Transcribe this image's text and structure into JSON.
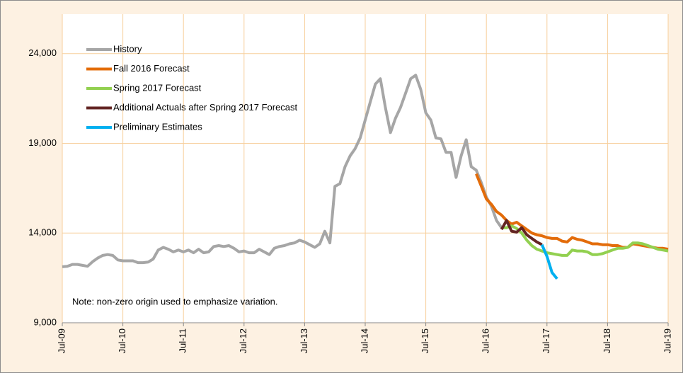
{
  "chart_data": {
    "type": "line",
    "categories": [
      "Jul-09",
      null,
      null,
      null,
      null,
      null,
      null,
      null,
      null,
      null,
      null,
      null,
      "Jul-10",
      null,
      null,
      null,
      null,
      null,
      null,
      null,
      null,
      null,
      null,
      null,
      "Jul-11",
      null,
      null,
      null,
      null,
      null,
      null,
      null,
      null,
      null,
      null,
      null,
      "Jul-12",
      null,
      null,
      null,
      null,
      null,
      null,
      null,
      null,
      null,
      null,
      null,
      "Jul-13",
      null,
      null,
      null,
      null,
      null,
      null,
      null,
      null,
      null,
      null,
      null,
      "Jul-14",
      null,
      null,
      null,
      null,
      null,
      null,
      null,
      null,
      null,
      null,
      null,
      "Jul-15",
      null,
      null,
      null,
      null,
      null,
      null,
      null,
      null,
      null,
      null,
      null,
      "Jul-16",
      null,
      null,
      null,
      null,
      null,
      null,
      null,
      null,
      null,
      null,
      null,
      "Jul-17",
      null,
      null,
      null,
      null,
      null,
      null,
      null,
      null,
      null,
      null,
      null,
      "Jul-18",
      null,
      null,
      null,
      null,
      null,
      null,
      null,
      null,
      null,
      null,
      null,
      "Jul-19"
    ],
    "series": [
      {
        "name": "History",
        "color": "#a6a6a6",
        "values": [
          12120,
          12150,
          12250,
          12250,
          12200,
          12150,
          12400,
          12600,
          12750,
          12800,
          12750,
          12500,
          12450,
          12450,
          12450,
          12350,
          12350,
          12380,
          12550,
          13050,
          13200,
          13100,
          12950,
          13050,
          12950,
          13050,
          12900,
          13100,
          12900,
          12950,
          13250,
          13300,
          13250,
          13300,
          13150,
          12950,
          13000,
          12900,
          12900,
          13100,
          12950,
          12800,
          13150,
          13250,
          13300,
          13400,
          13450,
          13600,
          13500,
          13350,
          13200,
          13400,
          14100,
          13450,
          16600,
          16750,
          17700,
          18300,
          18700,
          19300,
          20300,
          21300,
          22300,
          22600,
          21000,
          19600,
          20400,
          21000,
          21800,
          22600,
          22800,
          22000,
          20700,
          20300,
          19300,
          19250,
          18500,
          18500,
          17100,
          18300,
          19200,
          17700,
          17500,
          16800,
          16000,
          15500,
          14700,
          14300,
          null,
          null,
          null,
          null,
          null,
          null,
          null,
          null,
          null,
          null,
          null,
          null,
          null,
          null,
          null,
          null,
          null,
          null,
          null,
          null,
          null,
          null,
          null,
          null,
          null,
          null,
          null,
          null,
          null,
          null,
          null,
          null,
          null
        ]
      },
      {
        "name": "Fall 2016 Forecast",
        "color": "#e36c0a",
        "values": [
          null,
          null,
          null,
          null,
          null,
          null,
          null,
          null,
          null,
          null,
          null,
          null,
          null,
          null,
          null,
          null,
          null,
          null,
          null,
          null,
          null,
          null,
          null,
          null,
          null,
          null,
          null,
          null,
          null,
          null,
          null,
          null,
          null,
          null,
          null,
          null,
          null,
          null,
          null,
          null,
          null,
          null,
          null,
          null,
          null,
          null,
          null,
          null,
          null,
          null,
          null,
          null,
          null,
          null,
          null,
          null,
          null,
          null,
          null,
          null,
          null,
          null,
          null,
          null,
          null,
          null,
          null,
          null,
          null,
          null,
          null,
          null,
          null,
          null,
          null,
          null,
          null,
          null,
          null,
          null,
          null,
          null,
          17300,
          16600,
          15900,
          15600,
          15200,
          15000,
          14700,
          14500,
          14600,
          14400,
          14200,
          14000,
          13900,
          13850,
          13750,
          13700,
          13700,
          13550,
          13500,
          13750,
          13650,
          13600,
          13500,
          13400,
          13400,
          13350,
          13350,
          13300,
          13300,
          13200,
          13200,
          13400,
          13350,
          13300,
          13250,
          13200,
          13150,
          13150,
          13100
        ]
      },
      {
        "name": "Spring 2017 Forecast",
        "color": "#92d050",
        "values": [
          null,
          null,
          null,
          null,
          null,
          null,
          null,
          null,
          null,
          null,
          null,
          null,
          null,
          null,
          null,
          null,
          null,
          null,
          null,
          null,
          null,
          null,
          null,
          null,
          null,
          null,
          null,
          null,
          null,
          null,
          null,
          null,
          null,
          null,
          null,
          null,
          null,
          null,
          null,
          null,
          null,
          null,
          null,
          null,
          null,
          null,
          null,
          null,
          null,
          null,
          null,
          null,
          null,
          null,
          null,
          null,
          null,
          null,
          null,
          null,
          null,
          null,
          null,
          null,
          null,
          null,
          null,
          null,
          null,
          null,
          null,
          null,
          null,
          null,
          null,
          null,
          null,
          null,
          null,
          null,
          null,
          null,
          null,
          null,
          null,
          null,
          null,
          14300,
          14300,
          14400,
          14250,
          14000,
          13600,
          13300,
          13100,
          13000,
          12900,
          12850,
          12800,
          12750,
          12750,
          13050,
          13000,
          13000,
          12950,
          12800,
          12800,
          12850,
          12950,
          13050,
          13150,
          13150,
          13200,
          13450,
          13450,
          13400,
          13300,
          13200,
          13100,
          13050,
          13000
        ]
      },
      {
        "name": "Additional Actuals after Spring 2017 Forecast",
        "color": "#632523",
        "values": [
          null,
          null,
          null,
          null,
          null,
          null,
          null,
          null,
          null,
          null,
          null,
          null,
          null,
          null,
          null,
          null,
          null,
          null,
          null,
          null,
          null,
          null,
          null,
          null,
          null,
          null,
          null,
          null,
          null,
          null,
          null,
          null,
          null,
          null,
          null,
          null,
          null,
          null,
          null,
          null,
          null,
          null,
          null,
          null,
          null,
          null,
          null,
          null,
          null,
          null,
          null,
          null,
          null,
          null,
          null,
          null,
          null,
          null,
          null,
          null,
          null,
          null,
          null,
          null,
          null,
          null,
          null,
          null,
          null,
          null,
          null,
          null,
          null,
          null,
          null,
          null,
          null,
          null,
          null,
          null,
          null,
          null,
          null,
          null,
          null,
          null,
          null,
          14200,
          14700,
          14100,
          14050,
          14300,
          13900,
          13700,
          13500,
          13350,
          null,
          null,
          null,
          null,
          null,
          null,
          null,
          null,
          null,
          null,
          null,
          null,
          null,
          null,
          null,
          null,
          null,
          null,
          null,
          null,
          null,
          null,
          null,
          null,
          null
        ]
      },
      {
        "name": "Preliminary Estimates",
        "color": "#00b0f0",
        "values": [
          null,
          null,
          null,
          null,
          null,
          null,
          null,
          null,
          null,
          null,
          null,
          null,
          null,
          null,
          null,
          null,
          null,
          null,
          null,
          null,
          null,
          null,
          null,
          null,
          null,
          null,
          null,
          null,
          null,
          null,
          null,
          null,
          null,
          null,
          null,
          null,
          null,
          null,
          null,
          null,
          null,
          null,
          null,
          null,
          null,
          null,
          null,
          null,
          null,
          null,
          null,
          null,
          null,
          null,
          null,
          null,
          null,
          null,
          null,
          null,
          null,
          null,
          null,
          null,
          null,
          null,
          null,
          null,
          null,
          null,
          null,
          null,
          null,
          null,
          null,
          null,
          null,
          null,
          null,
          null,
          null,
          null,
          null,
          null,
          null,
          null,
          null,
          null,
          null,
          null,
          null,
          null,
          null,
          null,
          null,
          13350,
          12700,
          11800,
          11450,
          null,
          null,
          null,
          null,
          null,
          null,
          null,
          null,
          null,
          null,
          null,
          null,
          null,
          null,
          null,
          null,
          null,
          null,
          null,
          null,
          null,
          null
        ]
      }
    ],
    "ylim": [
      9000,
      26200
    ],
    "yticks": [
      {
        "value": 9000,
        "label": "9,000"
      },
      {
        "value": 14000,
        "label": "14,000"
      },
      {
        "value": 19000,
        "label": "19,000"
      },
      {
        "value": 24000,
        "label": "24,000"
      }
    ],
    "grid": true,
    "annotations": [
      "Note: non-zero origin used to emphasize variation."
    ]
  }
}
